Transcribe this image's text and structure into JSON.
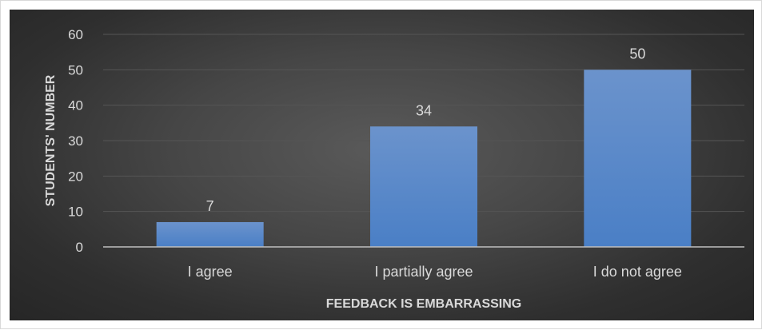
{
  "chart_data": {
    "type": "bar",
    "categories": [
      "I agree",
      "I partially agree",
      "I do not agree"
    ],
    "values": [
      7,
      34,
      50
    ],
    "data_labels": [
      "7",
      "34",
      "50"
    ],
    "title": "",
    "xlabel": "FEEDBACK IS EMBARRASSING",
    "ylabel": "STUDENTS' NUMBER",
    "ylim": [
      0,
      60
    ],
    "yticks": [
      0,
      10,
      20,
      30,
      40,
      50,
      60
    ],
    "ytick_labels": [
      "0",
      "10",
      "20",
      "30",
      "40",
      "50",
      "60"
    ],
    "grid": true,
    "legend": "none",
    "colors": {
      "bar_top": "#6b93cc",
      "bar_bottom": "#4a7fc6",
      "background_center": "#5a5a5a",
      "background_edge": "#262626",
      "gridline": "#555555",
      "axis_line": "#bfbfbf",
      "text": "#d9d9d9"
    }
  }
}
